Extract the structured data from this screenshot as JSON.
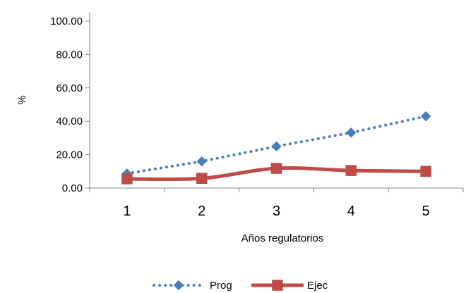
{
  "chart_data": {
    "type": "line",
    "title": "",
    "xlabel": "Años regulatorios",
    "ylabel": "%",
    "categories": [
      "1",
      "2",
      "3",
      "4",
      "5"
    ],
    "ylim": [
      0,
      100
    ],
    "yticks": [
      0,
      20,
      40,
      60,
      80,
      100
    ],
    "ytick_labels": [
      "0.00",
      "20.00",
      "40.00",
      "60.00",
      "80.00",
      "100.00"
    ],
    "grid": false,
    "legend_position": "bottom",
    "series": [
      {
        "name": "Prog",
        "values": [
          8.7,
          16.0,
          25.0,
          33.2,
          43.0
        ],
        "color": "#4a7ebb",
        "line_style": "dotted",
        "marker": "diamond"
      },
      {
        "name": "Ejec",
        "values": [
          5.5,
          5.8,
          11.8,
          10.5,
          10.0
        ],
        "color": "#be4b48",
        "line_style": "solid-smooth",
        "marker": "square"
      }
    ]
  }
}
